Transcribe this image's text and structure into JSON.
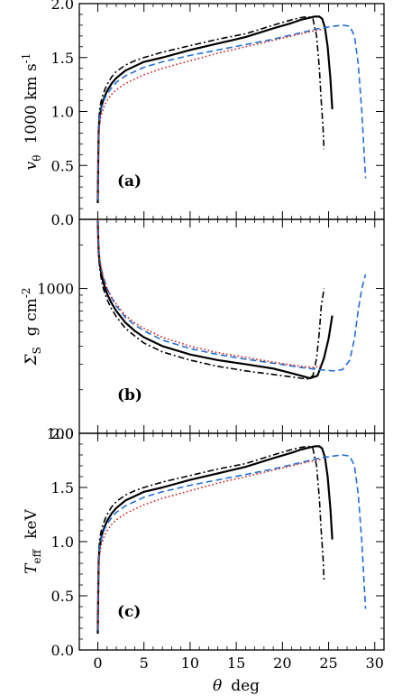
{
  "figure": {
    "xlabel_symbol": "θ",
    "xlabel_unit": "deg"
  },
  "chart_data": [
    {
      "type": "line",
      "panel_label": "(a)",
      "ylabel": {
        "symbol": "v",
        "sub": "θ",
        "unit": "1000  km  s",
        "sup": "-1"
      },
      "xlim": [
        -2,
        31
      ],
      "ylim": [
        0,
        2
      ],
      "yticks": [
        "0.0",
        "0.5",
        "1.0",
        "1.5",
        "2.0"
      ],
      "xticks_shown": false,
      "series": [
        {
          "style": "solid",
          "color": "#000000",
          "x": [
            0,
            0.05,
            0.1,
            0.2,
            0.35,
            0.5,
            0.75,
            1,
            1.5,
            2,
            3,
            4,
            5,
            7,
            10,
            13,
            16,
            19,
            21,
            22,
            23,
            23.5,
            24,
            24.3,
            24.6,
            24.9,
            25.2,
            25.4
          ],
          "y": [
            0.15,
            0.55,
            0.82,
            0.95,
            1.02,
            1.08,
            1.14,
            1.19,
            1.26,
            1.31,
            1.38,
            1.42,
            1.46,
            1.5,
            1.57,
            1.63,
            1.69,
            1.77,
            1.82,
            1.85,
            1.87,
            1.88,
            1.88,
            1.86,
            1.78,
            1.6,
            1.3,
            1.02
          ]
        },
        {
          "style": "dashdot",
          "color": "#000000",
          "x": [
            0,
            0.05,
            0.1,
            0.2,
            0.35,
            0.5,
            0.75,
            1,
            1.5,
            2,
            3,
            4,
            5,
            7,
            10,
            13,
            16,
            19,
            21,
            22,
            22.8,
            23.3,
            23.7,
            24,
            24.2,
            24.4,
            24.5
          ],
          "y": [
            0.18,
            0.6,
            0.88,
            1.02,
            1.09,
            1.14,
            1.2,
            1.25,
            1.32,
            1.37,
            1.43,
            1.47,
            1.5,
            1.55,
            1.61,
            1.67,
            1.72,
            1.8,
            1.85,
            1.87,
            1.88,
            1.86,
            1.7,
            1.4,
            1.1,
            0.85,
            0.65
          ]
        },
        {
          "style": "dashed",
          "color": "#1f6fd6",
          "x": [
            0,
            0.05,
            0.1,
            0.2,
            0.35,
            0.5,
            0.75,
            1,
            1.5,
            2,
            3,
            4,
            5,
            7,
            10,
            13,
            16,
            19,
            22,
            24,
            25.5,
            26.5,
            27.3,
            27.8,
            28.2,
            28.6,
            29
          ],
          "y": [
            0.18,
            0.55,
            0.8,
            0.94,
            1.01,
            1.06,
            1.12,
            1.16,
            1.22,
            1.27,
            1.33,
            1.37,
            1.41,
            1.46,
            1.52,
            1.57,
            1.62,
            1.67,
            1.73,
            1.77,
            1.79,
            1.8,
            1.79,
            1.7,
            1.45,
            1.0,
            0.38
          ]
        },
        {
          "style": "dotted",
          "color": "#d42020",
          "x": [
            0,
            0.05,
            0.1,
            0.2,
            0.35,
            0.5,
            0.75,
            1,
            1.5,
            2,
            3,
            4,
            5,
            7,
            10,
            13,
            16,
            19,
            22,
            23.5,
            24.2
          ],
          "y": [
            0.2,
            0.5,
            0.75,
            0.88,
            0.96,
            1.0,
            1.06,
            1.1,
            1.16,
            1.2,
            1.26,
            1.3,
            1.34,
            1.4,
            1.47,
            1.54,
            1.6,
            1.66,
            1.72,
            1.75,
            1.76
          ]
        }
      ]
    },
    {
      "type": "line",
      "panel_label": "(b)",
      "ylabel": {
        "symbol": "Σ",
        "sub": "S",
        "unit": "g  cm",
        "sup": "-2"
      },
      "xlim": [
        -2,
        31
      ],
      "ylim": [
        100,
        3000
      ],
      "yscale": "log",
      "yticks": [
        "100",
        "1000"
      ],
      "xticks_shown": false,
      "series": [
        {
          "style": "solid",
          "color": "#000000",
          "x": [
            0,
            0.05,
            0.1,
            0.2,
            0.4,
            0.6,
            1,
            1.5,
            2,
            3,
            4,
            5,
            7,
            10,
            13,
            16,
            19,
            21,
            22,
            23,
            23.8,
            24.5,
            25,
            25.4
          ],
          "y": [
            3000,
            2200,
            1800,
            1500,
            1250,
            1100,
            920,
            790,
            700,
            580,
            510,
            460,
            400,
            350,
            320,
            300,
            280,
            260,
            250,
            240,
            250,
            330,
            450,
            650
          ]
        },
        {
          "style": "dashdot",
          "color": "#000000",
          "x": [
            0,
            0.05,
            0.1,
            0.2,
            0.4,
            0.6,
            1,
            1.5,
            2,
            3,
            4,
            5,
            7,
            10,
            13,
            16,
            19,
            21,
            22,
            22.8,
            23.3,
            23.7,
            24,
            24.2,
            24.4,
            24.5
          ],
          "y": [
            3000,
            2100,
            1700,
            1400,
            1150,
            1000,
            840,
            720,
            640,
            530,
            470,
            420,
            365,
            320,
            290,
            270,
            255,
            245,
            240,
            237,
            250,
            330,
            500,
            750,
            900,
            1000
          ]
        },
        {
          "style": "dashed",
          "color": "#1f6fd6",
          "x": [
            0,
            0.05,
            0.1,
            0.2,
            0.4,
            0.6,
            1,
            1.5,
            2,
            3,
            4,
            5,
            7,
            10,
            13,
            16,
            19,
            22,
            24,
            25.5,
            26.5,
            27.3,
            27.8,
            28.2,
            28.6,
            29
          ],
          "y": [
            3000,
            2300,
            1900,
            1600,
            1350,
            1200,
            1000,
            860,
            760,
            630,
            560,
            510,
            440,
            385,
            350,
            325,
            305,
            285,
            275,
            270,
            275,
            320,
            450,
            700,
            1000,
            1250
          ]
        },
        {
          "style": "dotted",
          "color": "#d42020",
          "x": [
            0,
            0.05,
            0.1,
            0.2,
            0.4,
            0.6,
            1,
            1.5,
            2,
            3,
            4,
            5,
            7,
            10,
            13,
            16,
            19,
            22,
            23.5,
            24.2
          ],
          "y": [
            3000,
            2300,
            1900,
            1600,
            1350,
            1200,
            1000,
            870,
            780,
            650,
            580,
            530,
            460,
            400,
            360,
            335,
            310,
            290,
            285,
            295
          ]
        }
      ]
    },
    {
      "type": "line",
      "panel_label": "(c)",
      "ylabel": {
        "symbol": "T",
        "sub": "eff",
        "unit": "keV",
        "sup": ""
      },
      "xlim": [
        -2,
        31
      ],
      "ylim": [
        0,
        2
      ],
      "yticks": [
        "0.0",
        "0.5",
        "1.0",
        "1.5",
        "2.0"
      ],
      "xticks": [
        "0",
        "5",
        "10",
        "15",
        "20",
        "25",
        "30"
      ],
      "xtick_values": [
        0,
        5,
        10,
        15,
        20,
        25,
        30
      ],
      "xticks_shown": true,
      "series": [
        {
          "style": "solid",
          "color": "#000000",
          "x": [
            0,
            0.05,
            0.1,
            0.2,
            0.35,
            0.5,
            0.75,
            1,
            1.5,
            2,
            3,
            4,
            5,
            7,
            10,
            13,
            16,
            19,
            21,
            22,
            23,
            23.5,
            24,
            24.3,
            24.6,
            24.9,
            25.2,
            25.4
          ],
          "y": [
            0.15,
            0.55,
            0.82,
            0.95,
            1.02,
            1.08,
            1.14,
            1.19,
            1.26,
            1.31,
            1.38,
            1.42,
            1.46,
            1.5,
            1.57,
            1.63,
            1.69,
            1.77,
            1.82,
            1.85,
            1.87,
            1.88,
            1.88,
            1.86,
            1.78,
            1.6,
            1.3,
            1.02
          ]
        },
        {
          "style": "dashdot",
          "color": "#000000",
          "x": [
            0,
            0.05,
            0.1,
            0.2,
            0.35,
            0.5,
            0.75,
            1,
            1.5,
            2,
            3,
            4,
            5,
            7,
            10,
            13,
            16,
            19,
            21,
            22,
            22.8,
            23.3,
            23.7,
            24,
            24.2,
            24.4,
            24.5
          ],
          "y": [
            0.18,
            0.6,
            0.88,
            1.02,
            1.09,
            1.14,
            1.2,
            1.25,
            1.32,
            1.37,
            1.43,
            1.47,
            1.5,
            1.55,
            1.61,
            1.67,
            1.72,
            1.8,
            1.85,
            1.87,
            1.88,
            1.86,
            1.7,
            1.4,
            1.1,
            0.85,
            0.65
          ]
        },
        {
          "style": "dashed",
          "color": "#1f6fd6",
          "x": [
            0,
            0.05,
            0.1,
            0.2,
            0.35,
            0.5,
            0.75,
            1,
            1.5,
            2,
            3,
            4,
            5,
            7,
            10,
            13,
            16,
            19,
            22,
            24,
            25.5,
            26.5,
            27.3,
            27.8,
            28.2,
            28.6,
            29
          ],
          "y": [
            0.18,
            0.55,
            0.8,
            0.94,
            1.01,
            1.06,
            1.12,
            1.16,
            1.22,
            1.27,
            1.33,
            1.37,
            1.41,
            1.46,
            1.52,
            1.57,
            1.62,
            1.67,
            1.73,
            1.77,
            1.79,
            1.8,
            1.79,
            1.7,
            1.45,
            1.0,
            0.38
          ]
        },
        {
          "style": "dotted",
          "color": "#d42020",
          "x": [
            0,
            0.05,
            0.1,
            0.2,
            0.35,
            0.5,
            0.75,
            1,
            1.5,
            2,
            3,
            4,
            5,
            7,
            10,
            13,
            16,
            19,
            22,
            23.5,
            24.2
          ],
          "y": [
            0.2,
            0.5,
            0.75,
            0.88,
            0.96,
            1.0,
            1.06,
            1.1,
            1.16,
            1.2,
            1.26,
            1.3,
            1.34,
            1.4,
            1.47,
            1.54,
            1.6,
            1.66,
            1.72,
            1.75,
            1.76
          ]
        }
      ]
    }
  ]
}
